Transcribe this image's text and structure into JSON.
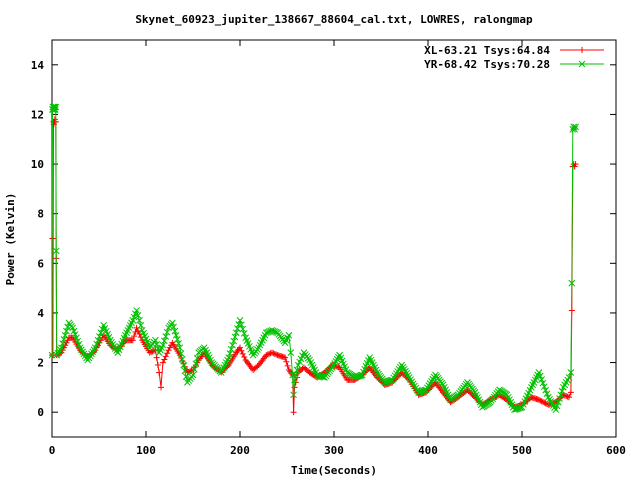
{
  "chart_data": {
    "type": "line",
    "title": "Skynet_60923_jupiter_138667_88604_cal.txt, LOWRES, ralongmap",
    "xlabel": "Time(Seconds)",
    "ylabel": "Power (Kelvin)",
    "xlim": [
      0,
      600
    ],
    "ylim": [
      -1,
      15
    ],
    "xticks": [
      0,
      100,
      200,
      300,
      400,
      500,
      600
    ],
    "yticks": [
      0,
      2,
      4,
      6,
      8,
      10,
      12,
      14
    ],
    "grid": false,
    "legend_position": "top-right",
    "series": [
      {
        "name": "XL-63.21 Tsys:64.84",
        "color": "#ff0000",
        "marker": "plus",
        "points": [
          [
            0,
            2.3
          ],
          [
            0.5,
            7.0
          ],
          [
            1,
            2.3
          ],
          [
            1.5,
            11.7
          ],
          [
            2,
            11.6
          ],
          [
            2.5,
            11.7
          ],
          [
            3,
            11.8
          ],
          [
            3.5,
            11.7
          ],
          [
            4,
            11.7
          ],
          [
            4.5,
            6.2
          ],
          [
            5,
            2.3
          ],
          [
            10,
            2.4
          ],
          [
            18,
            3.0
          ],
          [
            22,
            3.0
          ],
          [
            30,
            2.5
          ],
          [
            38,
            2.2
          ],
          [
            46,
            2.5
          ],
          [
            55,
            3.1
          ],
          [
            62,
            2.7
          ],
          [
            70,
            2.5
          ],
          [
            78,
            2.9
          ],
          [
            86,
            2.9
          ],
          [
            90,
            3.4
          ],
          [
            96,
            2.9
          ],
          [
            104,
            2.4
          ],
          [
            110,
            2.5
          ],
          [
            114,
            1.6
          ],
          [
            116,
            1.0
          ],
          [
            118,
            2.0
          ],
          [
            124,
            2.5
          ],
          [
            128,
            2.8
          ],
          [
            136,
            2.3
          ],
          [
            144,
            1.6
          ],
          [
            150,
            1.7
          ],
          [
            156,
            2.1
          ],
          [
            162,
            2.4
          ],
          [
            170,
            1.9
          ],
          [
            180,
            1.6
          ],
          [
            188,
            1.9
          ],
          [
            196,
            2.4
          ],
          [
            200,
            2.6
          ],
          [
            206,
            2.1
          ],
          [
            214,
            1.7
          ],
          [
            220,
            1.9
          ],
          [
            228,
            2.3
          ],
          [
            234,
            2.4
          ],
          [
            240,
            2.3
          ],
          [
            248,
            2.2
          ],
          [
            252,
            1.7
          ],
          [
            256,
            1.5
          ],
          [
            257,
            0.0
          ],
          [
            258,
            1.0
          ],
          [
            262,
            1.6
          ],
          [
            268,
            1.8
          ],
          [
            274,
            1.6
          ],
          [
            282,
            1.4
          ],
          [
            290,
            1.6
          ],
          [
            298,
            1.9
          ],
          [
            306,
            1.8
          ],
          [
            314,
            1.3
          ],
          [
            322,
            1.3
          ],
          [
            330,
            1.5
          ],
          [
            338,
            1.8
          ],
          [
            346,
            1.4
          ],
          [
            354,
            1.1
          ],
          [
            362,
            1.2
          ],
          [
            372,
            1.6
          ],
          [
            380,
            1.3
          ],
          [
            390,
            0.7
          ],
          [
            398,
            0.8
          ],
          [
            408,
            1.2
          ],
          [
            416,
            0.8
          ],
          [
            424,
            0.4
          ],
          [
            432,
            0.6
          ],
          [
            442,
            0.9
          ],
          [
            450,
            0.6
          ],
          [
            458,
            0.3
          ],
          [
            466,
            0.5
          ],
          [
            476,
            0.7
          ],
          [
            484,
            0.5
          ],
          [
            492,
            0.2
          ],
          [
            500,
            0.3
          ],
          [
            510,
            0.6
          ],
          [
            518,
            0.5
          ],
          [
            528,
            0.3
          ],
          [
            536,
            0.4
          ],
          [
            544,
            0.7
          ],
          [
            550,
            0.6
          ],
          [
            552,
            0.8
          ],
          [
            553,
            4.1
          ],
          [
            554,
            9.9
          ],
          [
            555,
            10.0
          ],
          [
            556,
            9.9
          ],
          [
            557,
            10.0
          ]
        ]
      },
      {
        "name": "YR-68.42 Tsys:70.28",
        "color": "#00c000",
        "marker": "cross",
        "points": [
          [
            0,
            2.3
          ],
          [
            0.5,
            12.2
          ],
          [
            1,
            12.3
          ],
          [
            1.5,
            12.2
          ],
          [
            2,
            12.3
          ],
          [
            2.5,
            12.2
          ],
          [
            3,
            12.3
          ],
          [
            3.5,
            12.2
          ],
          [
            4,
            12.3
          ],
          [
            4.5,
            6.5
          ],
          [
            5,
            2.3
          ],
          [
            10,
            2.6
          ],
          [
            18,
            3.6
          ],
          [
            22,
            3.4
          ],
          [
            30,
            2.6
          ],
          [
            38,
            2.1
          ],
          [
            46,
            2.6
          ],
          [
            55,
            3.5
          ],
          [
            62,
            2.9
          ],
          [
            70,
            2.4
          ],
          [
            78,
            3.1
          ],
          [
            86,
            3.7
          ],
          [
            90,
            4.1
          ],
          [
            96,
            3.3
          ],
          [
            104,
            2.6
          ],
          [
            110,
            2.9
          ],
          [
            114,
            2.4
          ],
          [
            118,
            2.7
          ],
          [
            124,
            3.4
          ],
          [
            128,
            3.6
          ],
          [
            136,
            2.6
          ],
          [
            144,
            1.2
          ],
          [
            150,
            1.5
          ],
          [
            156,
            2.4
          ],
          [
            162,
            2.6
          ],
          [
            170,
            2.0
          ],
          [
            180,
            1.6
          ],
          [
            188,
            2.2
          ],
          [
            196,
            3.2
          ],
          [
            200,
            3.7
          ],
          [
            206,
            3.0
          ],
          [
            214,
            2.3
          ],
          [
            220,
            2.6
          ],
          [
            228,
            3.2
          ],
          [
            234,
            3.3
          ],
          [
            240,
            3.2
          ],
          [
            248,
            2.8
          ],
          [
            252,
            3.1
          ],
          [
            254,
            2.4
          ],
          [
            256,
            1.5
          ],
          [
            257,
            0.7
          ],
          [
            258,
            1.3
          ],
          [
            262,
            1.9
          ],
          [
            268,
            2.4
          ],
          [
            274,
            2.1
          ],
          [
            282,
            1.5
          ],
          [
            290,
            1.4
          ],
          [
            298,
            1.8
          ],
          [
            306,
            2.3
          ],
          [
            314,
            1.6
          ],
          [
            322,
            1.4
          ],
          [
            330,
            1.5
          ],
          [
            338,
            2.2
          ],
          [
            346,
            1.6
          ],
          [
            354,
            1.2
          ],
          [
            362,
            1.3
          ],
          [
            372,
            1.9
          ],
          [
            380,
            1.4
          ],
          [
            390,
            0.8
          ],
          [
            398,
            0.9
          ],
          [
            408,
            1.5
          ],
          [
            416,
            1.1
          ],
          [
            424,
            0.5
          ],
          [
            432,
            0.7
          ],
          [
            442,
            1.2
          ],
          [
            450,
            0.8
          ],
          [
            458,
            0.2
          ],
          [
            466,
            0.4
          ],
          [
            476,
            0.9
          ],
          [
            484,
            0.7
          ],
          [
            492,
            0.1
          ],
          [
            500,
            0.2
          ],
          [
            510,
            1.0
          ],
          [
            518,
            1.6
          ],
          [
            528,
            0.6
          ],
          [
            536,
            0.1
          ],
          [
            544,
            1.0
          ],
          [
            550,
            1.4
          ],
          [
            552,
            1.6
          ],
          [
            553,
            5.2
          ],
          [
            554,
            11.4
          ],
          [
            555,
            11.5
          ],
          [
            556,
            11.4
          ],
          [
            557,
            11.5
          ]
        ]
      }
    ]
  }
}
